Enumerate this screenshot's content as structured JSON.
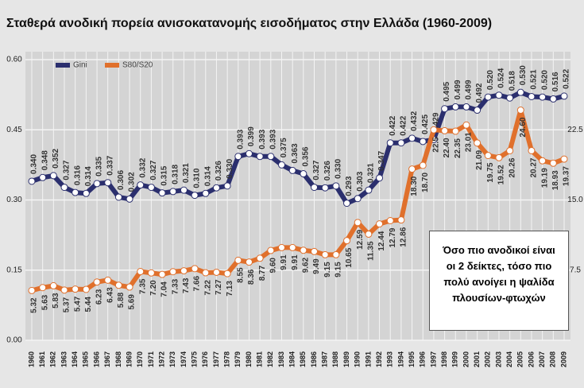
{
  "chart_data": {
    "type": "line",
    "title": "Σταθερά ανοδική πορεία ανισοκατανομής εισοδήματος στην Ελλάδα (1960-2009)",
    "categories": [
      "1960",
      "1961",
      "1962",
      "1963",
      "1964",
      "1965",
      "1966",
      "1967",
      "1968",
      "1969",
      "1970",
      "1971",
      "1972",
      "1973",
      "1974",
      "1975",
      "1976",
      "1977",
      "1978",
      "1979",
      "1980",
      "1981",
      "1982",
      "1983",
      "1984",
      "1985",
      "1986",
      "1987",
      "1988",
      "1989",
      "1990",
      "1991",
      "1992",
      "1993",
      "1994",
      "1995",
      "1996",
      "1997",
      "1998",
      "1999",
      "2000",
      "2001",
      "2002",
      "2003",
      "2004",
      "2005",
      "2006",
      "2007",
      "2008",
      "2009"
    ],
    "series": [
      {
        "name": "Gini",
        "color": "#2b2f6e",
        "values": [
          0.34,
          0.348,
          0.352,
          0.327,
          0.316,
          0.314,
          0.335,
          0.337,
          0.306,
          0.302,
          0.332,
          0.327,
          0.315,
          0.318,
          0.321,
          0.31,
          0.314,
          0.326,
          0.33,
          0.393,
          0.399,
          0.393,
          0.393,
          0.375,
          0.363,
          0.356,
          0.327,
          0.326,
          0.33,
          0.293,
          0.303,
          0.321,
          0.347,
          0.422,
          0.422,
          0.432,
          0.425,
          0.429,
          0.495,
          0.499,
          0.499,
          0.492,
          0.52,
          0.524,
          0.518,
          0.53,
          0.521,
          0.52,
          0.516,
          0.522
        ],
        "value_labels": [
          "0.340",
          "0.348",
          "0.352",
          "0.327",
          "0.316",
          "0.314",
          "0.335",
          "0.337",
          "0.306",
          "0.302",
          "0.332",
          "0.327",
          "0.315",
          "0.318",
          "0.321",
          "0.310",
          "0.314",
          "0.326",
          "0.330",
          "0.393",
          "0.399",
          "0.393",
          "0.393",
          "0.375",
          "0.363",
          "0.356",
          "0.327",
          "0.326",
          "0.330",
          "0.293",
          "0.303",
          "0.321",
          "0.347",
          "0.422",
          "0.422",
          "0.432",
          "0.425",
          "0.429",
          "0.495",
          "0.499",
          "0.499",
          "0.492",
          "0.520",
          "0.524",
          "0.518",
          "0.530",
          "0.521",
          "0.520",
          "0.516",
          "0.522"
        ]
      },
      {
        "name": "S80/S20",
        "color": "#e0702c",
        "axis": "y2",
        "values": [
          5.32,
          5.63,
          5.83,
          5.37,
          5.47,
          5.44,
          6.23,
          6.43,
          5.88,
          5.69,
          7.35,
          7.2,
          7.04,
          7.33,
          7.43,
          7.66,
          7.22,
          7.27,
          7.13,
          8.55,
          8.36,
          8.77,
          9.6,
          9.91,
          9.91,
          9.62,
          9.49,
          9.15,
          9.15,
          10.65,
          12.59,
          11.35,
          12.44,
          12.79,
          12.86,
          18.3,
          18.7,
          22.5,
          22.4,
          22.35,
          23.01,
          21.09,
          19.75,
          19.52,
          20.26,
          24.6,
          20.27,
          19.19,
          18.93,
          19.37
        ],
        "value_labels": [
          "5.32",
          "5.63",
          "5.83",
          "5.37",
          "5.47",
          "5.44",
          "6.23",
          "6.43",
          "5.88",
          "5.69",
          "7.35",
          "7.20",
          "7.04",
          "7.33",
          "7.43",
          "7.66",
          "7.22",
          "7.27",
          "7.13",
          "8.55",
          "8.36",
          "8.77",
          "9.60",
          "9.91",
          "9.91",
          "9.62",
          "9.49",
          "9.15",
          "9.15",
          "10.65",
          "12.59",
          "11.35",
          "12.44",
          "12.79",
          "12.86",
          "18.30",
          "18.70",
          "22.5",
          "22.40",
          "22.35",
          "23.01",
          "21.09",
          "19.75",
          "19.52",
          "20.26",
          "24.60",
          "20.27",
          "19.19",
          "18.93",
          "19.37"
        ]
      }
    ],
    "ylim": [
      0,
      0.6
    ],
    "yticks": [
      {
        "value": 0,
        "label": "0.00"
      },
      {
        "value": 0.15,
        "label": "0.15"
      },
      {
        "value": 0.3,
        "label": "0.30"
      },
      {
        "value": 0.45,
        "label": "0.45"
      },
      {
        "value": 0.6,
        "label": "0.60"
      }
    ],
    "y2lim": [
      0,
      30
    ],
    "y2ticks": [
      7.5,
      {
        "value": 15,
        "label": "15.0"
      },
      22.5
    ],
    "grid": true,
    "legend": "top-left",
    "annotation": "Όσο πιο ανοδικοί είναι οι 2 δείκτες, τόσο πιο πολύ ανοίγει η ψαλίδα πλουσίων-φτωχών"
  }
}
